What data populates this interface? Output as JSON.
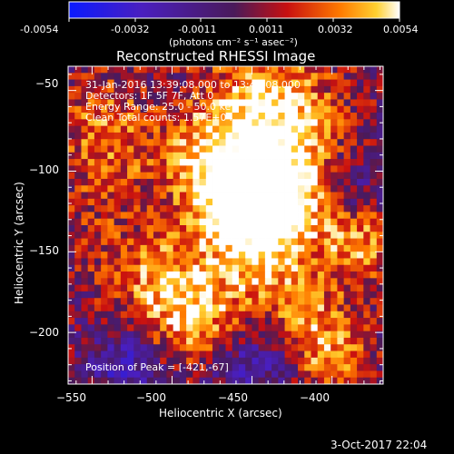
{
  "colorbar": {
    "ticks": [
      "-0.0054",
      "-0.0032",
      "-0.0011",
      "0.0011",
      "0.0032",
      "0.0054"
    ],
    "units": "(photons cm⁻² s⁻¹ asec⁻²)"
  },
  "plot": {
    "title": "Reconstructed RHESSI Image",
    "xlabel": "Heliocentric X (arcsec)",
    "ylabel": "Heliocentric Y (arcsec)",
    "xticks": [
      "−550",
      "−500",
      "−450",
      "−400"
    ],
    "yticks": [
      "−50",
      "−100",
      "−150",
      "−200"
    ],
    "info_lines": [
      "31-Jan-2016 13:39:08.000 to 13:49:08.000",
      "Detectors: 1F 5F 7F, Att 0",
      "Energy Range: 25.0 - 50.0 keV",
      "Clean     Total counts: 1.57E+04"
    ],
    "peak_label": "Position of Peak = [-421,-67]"
  },
  "footer": {
    "timestamp": "3-Oct-2017 22:04"
  },
  "chart_data": {
    "type": "heatmap",
    "title": "Reconstructed RHESSI Image",
    "xlabel": "Heliocentric X (arcsec)",
    "ylabel": "Heliocentric Y (arcsec)",
    "xlim": [
      -565,
      -368
    ],
    "ylim": [
      -232,
      -35
    ],
    "colorbar_range": [
      -0.0054,
      0.0054
    ],
    "colormap": "blue-purple-red-yellow-white",
    "peak_position": [
      -421,
      -67
    ],
    "grid": false
  }
}
